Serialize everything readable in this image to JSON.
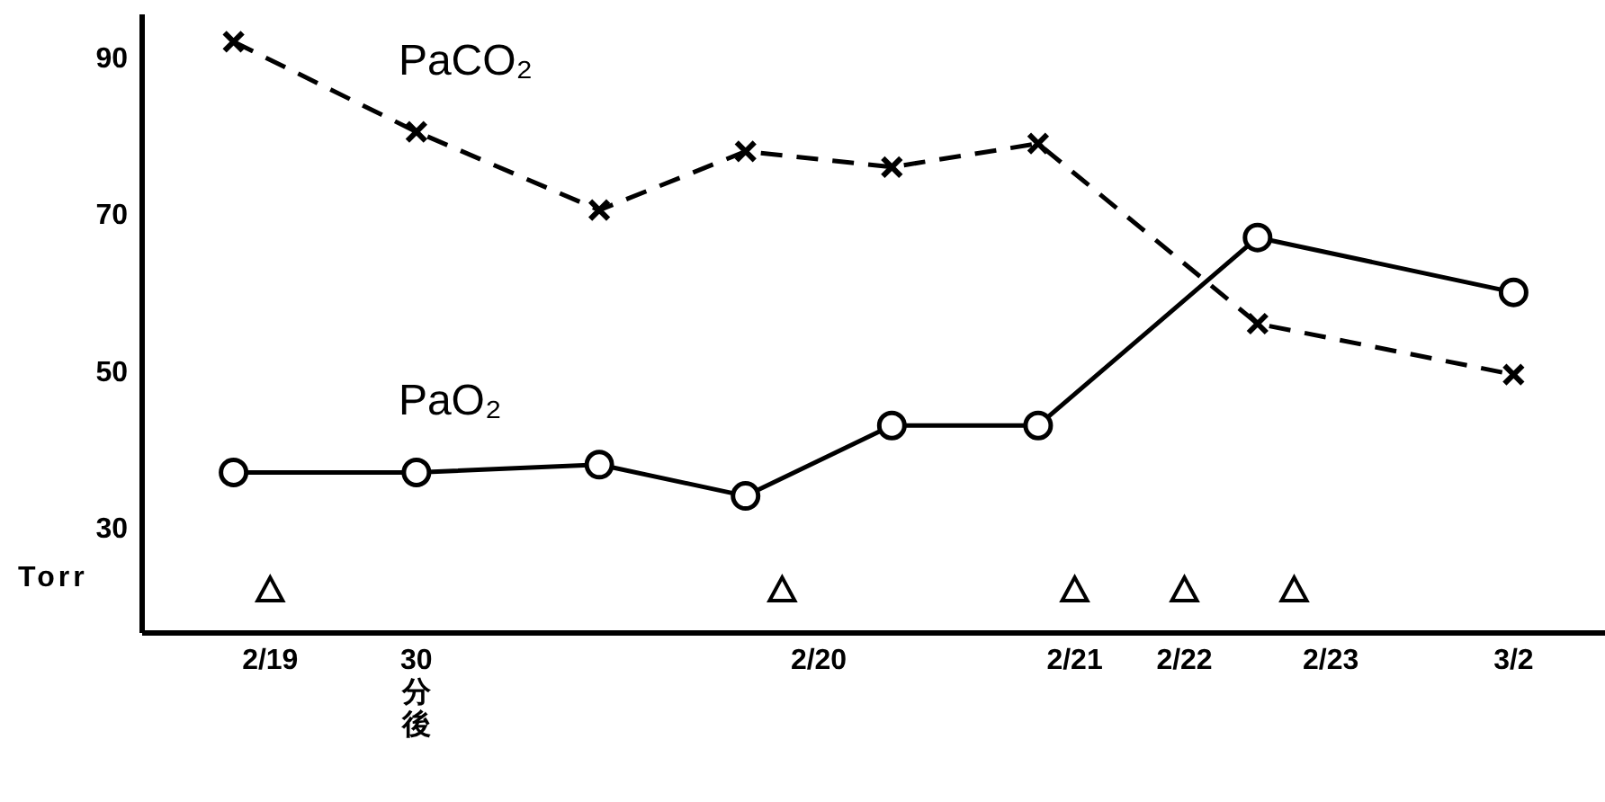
{
  "chart_data": {
    "type": "line",
    "ylabel": "Torr",
    "categories": [
      null,
      null,
      null,
      "2/19",
      null,
      null,
      null,
      "30分後",
      null,
      null,
      null,
      null,
      null,
      null,
      null,
      null,
      null,
      null,
      "2/20",
      null,
      null,
      null,
      null,
      null,
      null,
      "2/21",
      null,
      null,
      "2/22",
      null,
      null,
      null,
      "2/23",
      null,
      null,
      null,
      null,
      "3/2",
      null,
      null
    ],
    "ylim": [
      16.5,
      95.5
    ],
    "yticks": [
      30,
      50,
      70,
      90
    ],
    "series": [
      {
        "name": "PaCO₂",
        "color": "#000000",
        "marker": "cross",
        "line_style": "dashed",
        "values": [
          null,
          null,
          92,
          null,
          null,
          null,
          null,
          80.5,
          null,
          null,
          null,
          null,
          70.5,
          null,
          null,
          null,
          78,
          null,
          null,
          null,
          76,
          null,
          null,
          null,
          79,
          null,
          null,
          null,
          null,
          null,
          56,
          null,
          null,
          null,
          null,
          null,
          null,
          49.5,
          null,
          null
        ]
      },
      {
        "name": "PaO₂",
        "color": "#000000",
        "marker": "circle",
        "line_style": "solid",
        "values": [
          null,
          null,
          37,
          null,
          null,
          null,
          null,
          37,
          null,
          null,
          null,
          null,
          38,
          null,
          null,
          null,
          34,
          null,
          null,
          null,
          43,
          null,
          null,
          null,
          43,
          null,
          null,
          null,
          null,
          null,
          67,
          null,
          null,
          null,
          null,
          null,
          null,
          60,
          null,
          null
        ]
      },
      {
        "type": "scatter",
        "color": "#000000",
        "marker": "triangle",
        "values": [
          null,
          null,
          null,
          22,
          null,
          null,
          null,
          null,
          null,
          null,
          null,
          null,
          null,
          null,
          null,
          null,
          null,
          22,
          null,
          null,
          null,
          null,
          null,
          null,
          null,
          22,
          null,
          null,
          22,
          null,
          null,
          22,
          null,
          null,
          null,
          null,
          null,
          null,
          null,
          null
        ]
      }
    ]
  }
}
